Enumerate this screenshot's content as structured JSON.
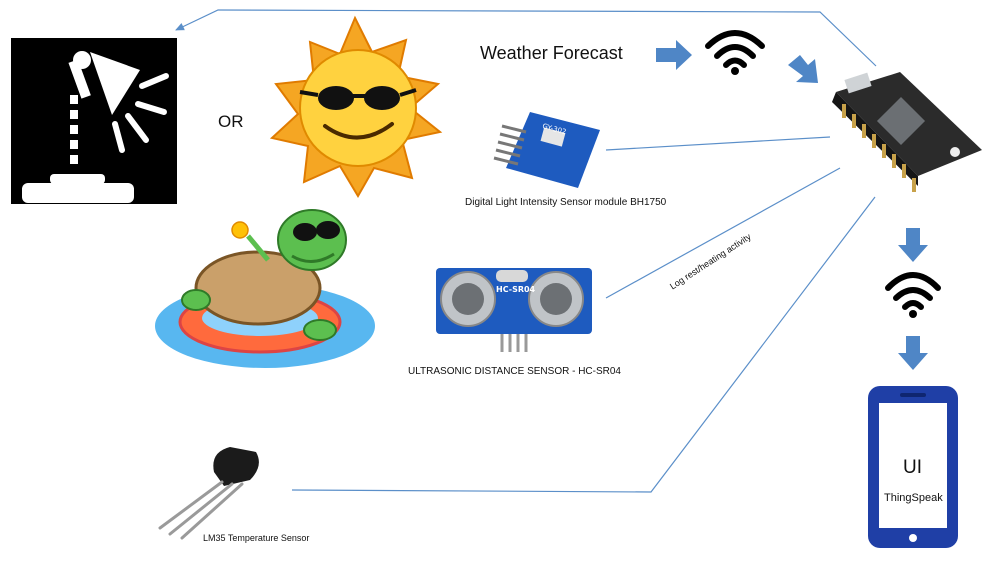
{
  "labels": {
    "weather_forecast": "Weather Forecast",
    "or": "OR",
    "light_sensor": "Digital Light Intensity Sensor module BH1750",
    "ultrasonic_sensor": "ULTRASONIC DISTANCE SENSOR - HC-SR04",
    "temperature_sensor": "LM35 Temperature Sensor",
    "log_activity": "Log rest/heating activity",
    "phone_ui": "UI",
    "phone_app": "ThingSpeak"
  },
  "chip_labels": {
    "bh1750": "GY-302",
    "hc_sr04": "HC-SR04"
  },
  "colors": {
    "line": "#5b8fc9",
    "arrow_fill": "#4f86c6",
    "phone": "#1f3fa6",
    "board": "#2b2b2b",
    "sensor_blue": "#1e5bbf"
  },
  "icons": [
    "lamp-icon",
    "sun-icon",
    "wifi-icon",
    "turtle-icon",
    "microcontroller-icon",
    "phone-icon"
  ]
}
